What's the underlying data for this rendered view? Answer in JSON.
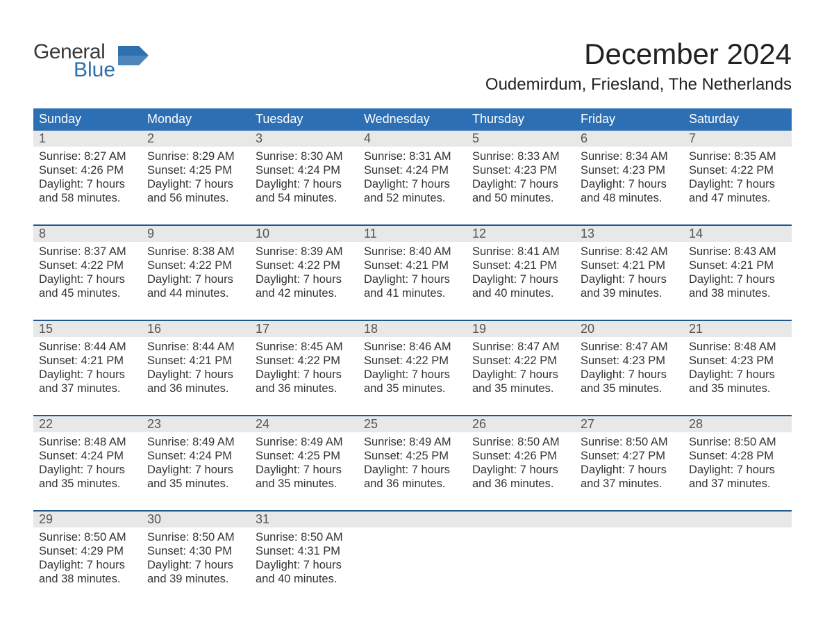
{
  "logo": {
    "top": "General",
    "bottom": "Blue"
  },
  "title": "December 2024",
  "location": "Oudemirdum, Friesland, The Netherlands",
  "colors": {
    "header_bg": "#2d6fb4",
    "week_border": "#1f578f",
    "daynum_bg": "#e8e8e8",
    "page_bg": "#ffffff",
    "text": "#3a3a3a",
    "logo_blue": "#2e6fae"
  },
  "days_of_week": [
    "Sunday",
    "Monday",
    "Tuesday",
    "Wednesday",
    "Thursday",
    "Friday",
    "Saturday"
  ],
  "weeks": [
    [
      {
        "n": "1",
        "sunrise": "Sunrise: 8:27 AM",
        "sunset": "Sunset: 4:26 PM",
        "d1": "Daylight: 7 hours",
        "d2": "and 58 minutes."
      },
      {
        "n": "2",
        "sunrise": "Sunrise: 8:29 AM",
        "sunset": "Sunset: 4:25 PM",
        "d1": "Daylight: 7 hours",
        "d2": "and 56 minutes."
      },
      {
        "n": "3",
        "sunrise": "Sunrise: 8:30 AM",
        "sunset": "Sunset: 4:24 PM",
        "d1": "Daylight: 7 hours",
        "d2": "and 54 minutes."
      },
      {
        "n": "4",
        "sunrise": "Sunrise: 8:31 AM",
        "sunset": "Sunset: 4:24 PM",
        "d1": "Daylight: 7 hours",
        "d2": "and 52 minutes."
      },
      {
        "n": "5",
        "sunrise": "Sunrise: 8:33 AM",
        "sunset": "Sunset: 4:23 PM",
        "d1": "Daylight: 7 hours",
        "d2": "and 50 minutes."
      },
      {
        "n": "6",
        "sunrise": "Sunrise: 8:34 AM",
        "sunset": "Sunset: 4:23 PM",
        "d1": "Daylight: 7 hours",
        "d2": "and 48 minutes."
      },
      {
        "n": "7",
        "sunrise": "Sunrise: 8:35 AM",
        "sunset": "Sunset: 4:22 PM",
        "d1": "Daylight: 7 hours",
        "d2": "and 47 minutes."
      }
    ],
    [
      {
        "n": "8",
        "sunrise": "Sunrise: 8:37 AM",
        "sunset": "Sunset: 4:22 PM",
        "d1": "Daylight: 7 hours",
        "d2": "and 45 minutes."
      },
      {
        "n": "9",
        "sunrise": "Sunrise: 8:38 AM",
        "sunset": "Sunset: 4:22 PM",
        "d1": "Daylight: 7 hours",
        "d2": "and 44 minutes."
      },
      {
        "n": "10",
        "sunrise": "Sunrise: 8:39 AM",
        "sunset": "Sunset: 4:22 PM",
        "d1": "Daylight: 7 hours",
        "d2": "and 42 minutes."
      },
      {
        "n": "11",
        "sunrise": "Sunrise: 8:40 AM",
        "sunset": "Sunset: 4:21 PM",
        "d1": "Daylight: 7 hours",
        "d2": "and 41 minutes."
      },
      {
        "n": "12",
        "sunrise": "Sunrise: 8:41 AM",
        "sunset": "Sunset: 4:21 PM",
        "d1": "Daylight: 7 hours",
        "d2": "and 40 minutes."
      },
      {
        "n": "13",
        "sunrise": "Sunrise: 8:42 AM",
        "sunset": "Sunset: 4:21 PM",
        "d1": "Daylight: 7 hours",
        "d2": "and 39 minutes."
      },
      {
        "n": "14",
        "sunrise": "Sunrise: 8:43 AM",
        "sunset": "Sunset: 4:21 PM",
        "d1": "Daylight: 7 hours",
        "d2": "and 38 minutes."
      }
    ],
    [
      {
        "n": "15",
        "sunrise": "Sunrise: 8:44 AM",
        "sunset": "Sunset: 4:21 PM",
        "d1": "Daylight: 7 hours",
        "d2": "and 37 minutes."
      },
      {
        "n": "16",
        "sunrise": "Sunrise: 8:44 AM",
        "sunset": "Sunset: 4:21 PM",
        "d1": "Daylight: 7 hours",
        "d2": "and 36 minutes."
      },
      {
        "n": "17",
        "sunrise": "Sunrise: 8:45 AM",
        "sunset": "Sunset: 4:22 PM",
        "d1": "Daylight: 7 hours",
        "d2": "and 36 minutes."
      },
      {
        "n": "18",
        "sunrise": "Sunrise: 8:46 AM",
        "sunset": "Sunset: 4:22 PM",
        "d1": "Daylight: 7 hours",
        "d2": "and 35 minutes."
      },
      {
        "n": "19",
        "sunrise": "Sunrise: 8:47 AM",
        "sunset": "Sunset: 4:22 PM",
        "d1": "Daylight: 7 hours",
        "d2": "and 35 minutes."
      },
      {
        "n": "20",
        "sunrise": "Sunrise: 8:47 AM",
        "sunset": "Sunset: 4:23 PM",
        "d1": "Daylight: 7 hours",
        "d2": "and 35 minutes."
      },
      {
        "n": "21",
        "sunrise": "Sunrise: 8:48 AM",
        "sunset": "Sunset: 4:23 PM",
        "d1": "Daylight: 7 hours",
        "d2": "and 35 minutes."
      }
    ],
    [
      {
        "n": "22",
        "sunrise": "Sunrise: 8:48 AM",
        "sunset": "Sunset: 4:24 PM",
        "d1": "Daylight: 7 hours",
        "d2": "and 35 minutes."
      },
      {
        "n": "23",
        "sunrise": "Sunrise: 8:49 AM",
        "sunset": "Sunset: 4:24 PM",
        "d1": "Daylight: 7 hours",
        "d2": "and 35 minutes."
      },
      {
        "n": "24",
        "sunrise": "Sunrise: 8:49 AM",
        "sunset": "Sunset: 4:25 PM",
        "d1": "Daylight: 7 hours",
        "d2": "and 35 minutes."
      },
      {
        "n": "25",
        "sunrise": "Sunrise: 8:49 AM",
        "sunset": "Sunset: 4:25 PM",
        "d1": "Daylight: 7 hours",
        "d2": "and 36 minutes."
      },
      {
        "n": "26",
        "sunrise": "Sunrise: 8:50 AM",
        "sunset": "Sunset: 4:26 PM",
        "d1": "Daylight: 7 hours",
        "d2": "and 36 minutes."
      },
      {
        "n": "27",
        "sunrise": "Sunrise: 8:50 AM",
        "sunset": "Sunset: 4:27 PM",
        "d1": "Daylight: 7 hours",
        "d2": "and 37 minutes."
      },
      {
        "n": "28",
        "sunrise": "Sunrise: 8:50 AM",
        "sunset": "Sunset: 4:28 PM",
        "d1": "Daylight: 7 hours",
        "d2": "and 37 minutes."
      }
    ],
    [
      {
        "n": "29",
        "sunrise": "Sunrise: 8:50 AM",
        "sunset": "Sunset: 4:29 PM",
        "d1": "Daylight: 7 hours",
        "d2": "and 38 minutes."
      },
      {
        "n": "30",
        "sunrise": "Sunrise: 8:50 AM",
        "sunset": "Sunset: 4:30 PM",
        "d1": "Daylight: 7 hours",
        "d2": "and 39 minutes."
      },
      {
        "n": "31",
        "sunrise": "Sunrise: 8:50 AM",
        "sunset": "Sunset: 4:31 PM",
        "d1": "Daylight: 7 hours",
        "d2": "and 40 minutes."
      },
      null,
      null,
      null,
      null
    ]
  ]
}
